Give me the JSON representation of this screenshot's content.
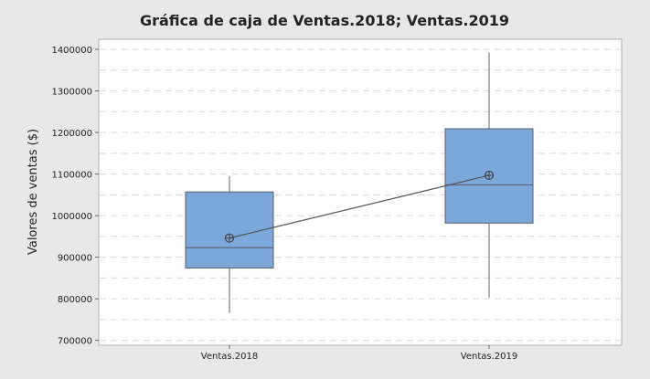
{
  "chart_data": {
    "type": "box",
    "title": "Gráfica de caja de Ventas.2018; Ventas.2019",
    "xlabel": "",
    "ylabel": "Valores de ventas ($)",
    "ylim": [
      690000,
      1420000
    ],
    "yticks": [
      700000,
      800000,
      900000,
      1000000,
      1100000,
      1200000,
      1300000,
      1400000
    ],
    "ytick_labels": [
      "700000",
      "800000",
      "900000",
      "1000000",
      "1100000",
      "1200000",
      "1300000",
      "1400000"
    ],
    "grid": "horizontal dashed, every 50000",
    "mean_connect_line": true,
    "box_color": "#7ba7db",
    "categories": [
      "Ventas.2018",
      "Ventas.2019"
    ],
    "boxes": [
      {
        "name": "Ventas.2018",
        "min": 766000,
        "q1": 874000,
        "median": 923000,
        "q3": 1057000,
        "max": 1095000,
        "mean": 946000
      },
      {
        "name": "Ventas.2019",
        "min": 803000,
        "q1": 982000,
        "median": 1074000,
        "q3": 1209000,
        "max": 1392000,
        "mean": 1097000
      }
    ]
  }
}
